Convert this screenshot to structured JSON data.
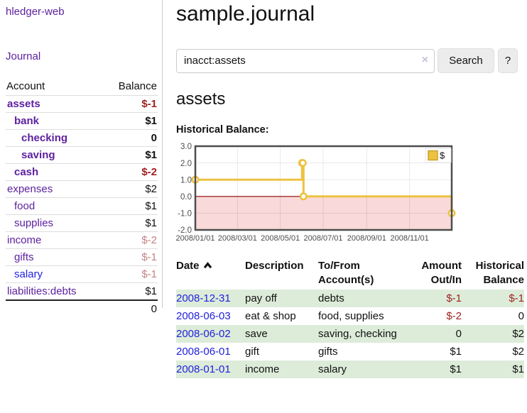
{
  "app": {
    "title": "hledger-web"
  },
  "colors": {
    "link_purple": "#5d21a0",
    "link_blue": "#2222dd",
    "negative_strong": "#9e1f1f",
    "negative_faded": "#c48383",
    "row_stripe_green": "#ddecd9",
    "series_yellow": "#edc240",
    "negative_region_pink": "#f9d9d9",
    "zero_line_red": "#8b0000"
  },
  "sidebar": {
    "nav_journal": "Journal",
    "table": {
      "header_account": "Account",
      "header_balance": "Balance",
      "rows": [
        {
          "account": "assets",
          "depth": 1,
          "bold": true,
          "balance": "$-1",
          "neg": "strong",
          "link": "purple"
        },
        {
          "account": "bank",
          "depth": 2,
          "bold": true,
          "balance": "$1",
          "neg": "none",
          "link": "purple"
        },
        {
          "account": "checking",
          "depth": 3,
          "bold": true,
          "balance": "0",
          "neg": "none",
          "link": "purple"
        },
        {
          "account": "saving",
          "depth": 3,
          "bold": true,
          "balance": "$1",
          "neg": "none",
          "link": "purple"
        },
        {
          "account": "cash",
          "depth": 2,
          "bold": true,
          "balance": "$-2",
          "neg": "strong",
          "link": "purple"
        },
        {
          "account": "expenses",
          "depth": 1,
          "bold": false,
          "balance": "$2",
          "neg": "none",
          "link": "purple"
        },
        {
          "account": "food",
          "depth": 2,
          "bold": false,
          "balance": "$1",
          "neg": "none",
          "link": "purple"
        },
        {
          "account": "supplies",
          "depth": 2,
          "bold": false,
          "balance": "$1",
          "neg": "none",
          "link": "purple"
        },
        {
          "account": "income",
          "depth": 1,
          "bold": false,
          "balance": "$-2",
          "neg": "faded",
          "link": "purple"
        },
        {
          "account": "gifts",
          "depth": 2,
          "bold": false,
          "balance": "$-1",
          "neg": "faded",
          "link": "purple"
        },
        {
          "account": "salary",
          "depth": 2,
          "bold": false,
          "balance": "$-1",
          "neg": "faded",
          "link": "blue"
        },
        {
          "account": "liabilities:debts",
          "depth": 1,
          "bold": false,
          "balance": "$1",
          "neg": "none",
          "link": "purple"
        }
      ],
      "total": "0"
    }
  },
  "main": {
    "title": "sample.journal",
    "search": {
      "value": "inacct:assets",
      "clear_icon": "×",
      "search_label": "Search",
      "help_label": "?"
    },
    "account_heading": "assets",
    "chart_label": "Historical Balance:"
  },
  "chart_data": {
    "type": "line",
    "step": true,
    "title": "Historical Balance",
    "legend": "$",
    "legend_position": "top-right",
    "ylim": [
      -2.0,
      3.0
    ],
    "y_ticks": [
      "3.0",
      "2.0",
      "1.0",
      "0.0",
      "-1.0",
      "-2.0"
    ],
    "x_ticks": [
      "2008/01/01",
      "2008/03/01",
      "2008/05/01",
      "2008/07/01",
      "2008/09/01",
      "2008/11/01"
    ],
    "x_range": [
      "2008-01-01",
      "2008-12-31"
    ],
    "grid": true,
    "negative_region_shaded": true,
    "series": [
      {
        "name": "$",
        "points": [
          [
            "2008-01-01",
            1
          ],
          [
            "2008-06-01",
            2
          ],
          [
            "2008-06-02",
            2
          ],
          [
            "2008-06-03",
            0
          ],
          [
            "2008-12-31",
            -1
          ]
        ]
      }
    ]
  },
  "register": {
    "headers": [
      {
        "line1": "Date",
        "line2": "",
        "align": "left",
        "sorted_asc": true
      },
      {
        "line1": "Description",
        "line2": "",
        "align": "left"
      },
      {
        "line1": "To/From",
        "line2": "Account(s)",
        "align": "left"
      },
      {
        "line1": "Amount",
        "line2": "Out/In",
        "align": "right"
      },
      {
        "line1": "Historical",
        "line2": "Balance",
        "align": "right"
      }
    ],
    "rows": [
      {
        "date": "2008-12-31",
        "description": "pay off",
        "accounts": "debts",
        "amount": "$-1",
        "amount_neg": true,
        "balance": "$-1",
        "balance_neg": true
      },
      {
        "date": "2008-06-03",
        "description": "eat & shop",
        "accounts": "food, supplies",
        "amount": "$-2",
        "amount_neg": true,
        "balance": "0",
        "balance_neg": false
      },
      {
        "date": "2008-06-02",
        "description": "save",
        "accounts": "saving, checking",
        "amount": "0",
        "amount_neg": false,
        "balance": "$2",
        "balance_neg": false
      },
      {
        "date": "2008-06-01",
        "description": "gift",
        "accounts": "gifts",
        "amount": "$1",
        "amount_neg": false,
        "balance": "$2",
        "balance_neg": false
      },
      {
        "date": "2008-01-01",
        "description": "income",
        "accounts": "salary",
        "amount": "$1",
        "amount_neg": false,
        "balance": "$1",
        "balance_neg": false
      }
    ]
  }
}
